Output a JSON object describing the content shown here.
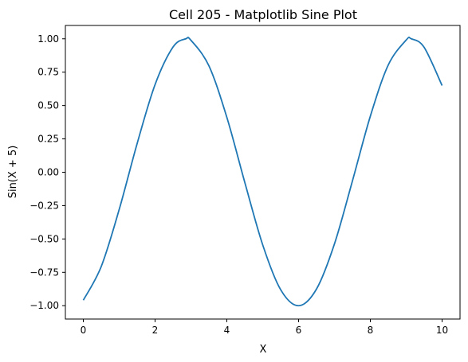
{
  "chart_data": {
    "type": "line",
    "title": "Cell 205 - Matplotlib Sine Plot",
    "xlabel": "X",
    "ylabel": "Sin(X + 5)",
    "xlim": [
      -0.5,
      10.5
    ],
    "ylim": [
      -1.1,
      1.1
    ],
    "xticks": [
      0,
      2,
      4,
      6,
      8,
      10
    ],
    "xtick_labels": [
      "0",
      "2",
      "4",
      "6",
      "8",
      "10"
    ],
    "yticks": [
      -1.0,
      -0.75,
      -0.5,
      -0.25,
      0.0,
      0.25,
      0.5,
      0.75,
      1.0
    ],
    "ytick_labels": [
      "−1.00",
      "−0.75",
      "−0.50",
      "−0.25",
      "0.00",
      "0.25",
      "0.50",
      "0.75",
      "1.00"
    ],
    "grid": false,
    "color": "#1f77b4",
    "series": [
      {
        "x": [
          0,
          0.5,
          1,
          1.5,
          2,
          2.5,
          2.858,
          3,
          3.5,
          4,
          4.5,
          5,
          5.5,
          6,
          6.5,
          7,
          7.5,
          8,
          8.5,
          9,
          9.142,
          9.5,
          10
        ],
        "y": [
          -0.959,
          -0.706,
          -0.279,
          0.215,
          0.657,
          0.938,
          1.0,
          0.989,
          0.798,
          0.412,
          -0.075,
          -0.544,
          -0.88,
          -1.0,
          -0.875,
          -0.537,
          -0.066,
          0.42,
          0.804,
          0.991,
          1.0,
          0.936,
          0.65
        ]
      }
    ]
  }
}
